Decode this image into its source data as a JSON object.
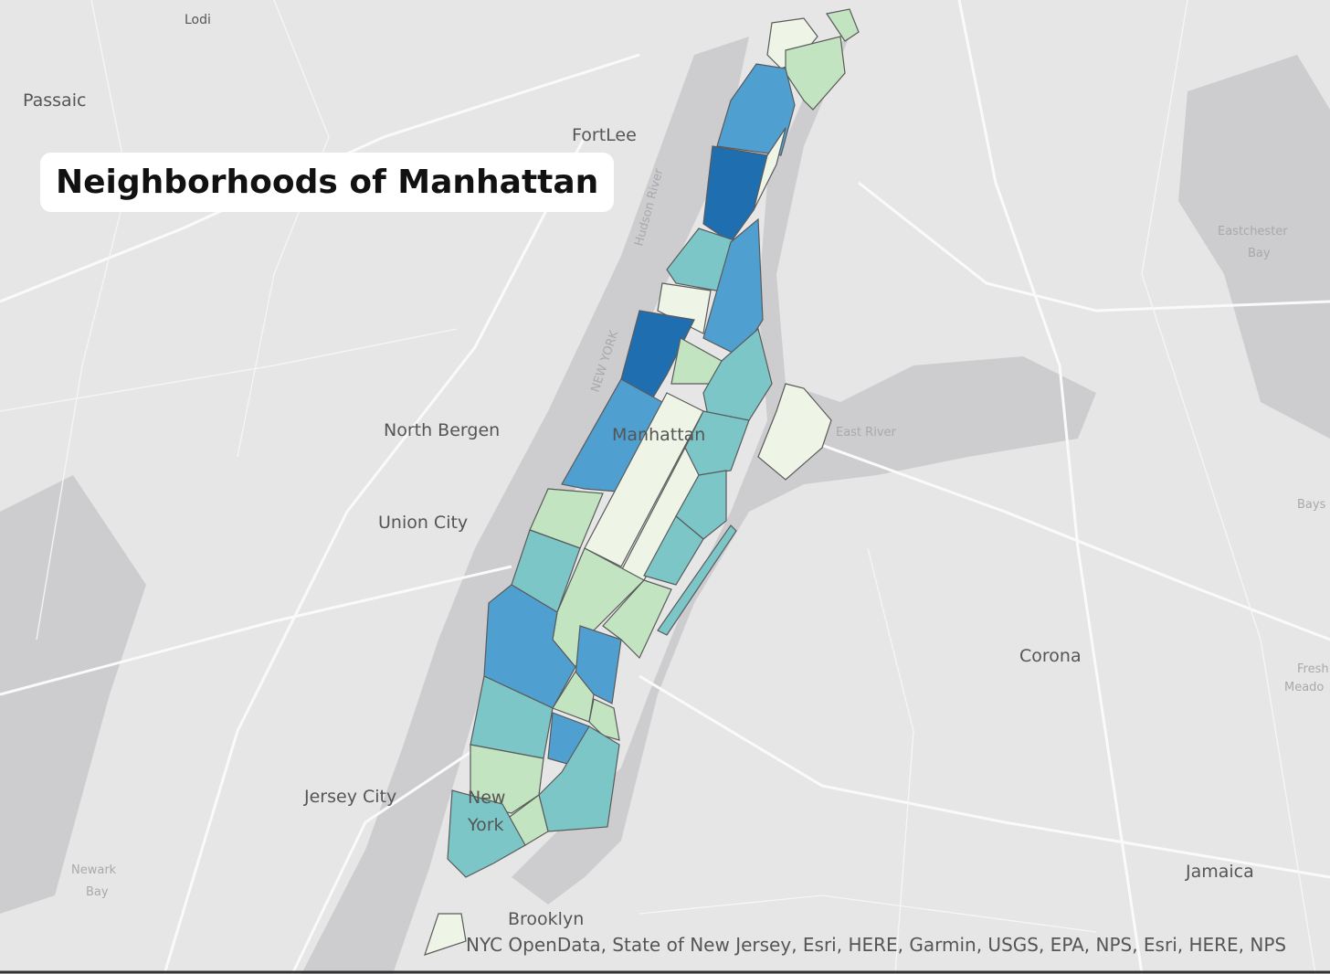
{
  "title": "Neighborhoods of Manhattan",
  "place_labels": [
    "Lodi",
    "Passaic",
    "FortLee",
    "North Bergen",
    "Union City",
    "Jersey City",
    "Manhattan",
    "New",
    "York",
    "Brooklyn",
    "Corona",
    "Jamaica",
    "East River",
    "Eastchester",
    "Bay",
    "Hudson River",
    "NEW YORK",
    "Newark",
    "Bay",
    "Bays",
    "Fresh",
    "Meado"
  ],
  "attribution": "NYC OpenData, State of New Jersey, Esri, HERE, Garmin, USGS, EPA, NPS, Esri, HERE, NPS"
}
